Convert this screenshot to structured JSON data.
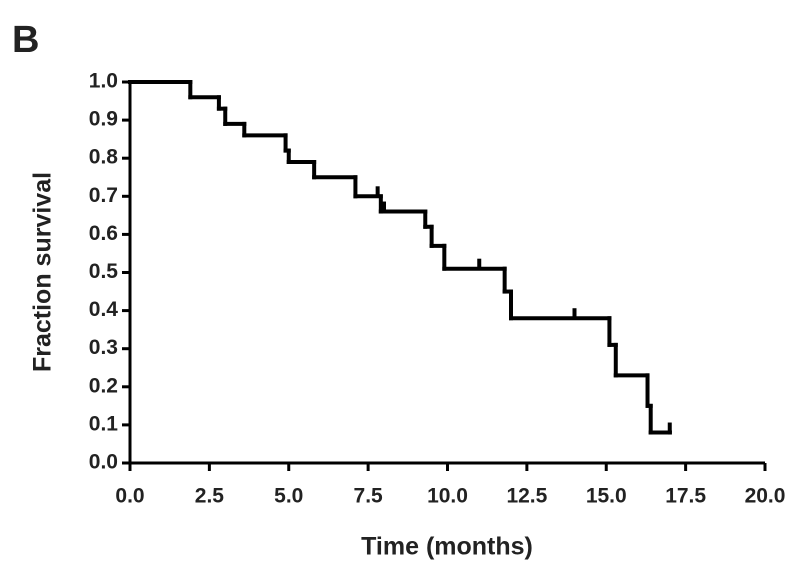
{
  "chart_data": {
    "type": "step",
    "panel_label": "B",
    "x_label": "Time (months)",
    "y_label": "Fraction survival",
    "x": [
      0,
      1.9,
      2.8,
      3.0,
      3.6,
      4.9,
      5.0,
      5.8,
      7.1,
      7.9,
      9.3,
      9.5,
      9.9,
      11.8,
      12.0,
      15.1,
      15.3,
      16.3,
      16.4,
      17.0
    ],
    "values": [
      1.0,
      0.96,
      0.93,
      0.89,
      0.86,
      0.82,
      0.79,
      0.75,
      0.7,
      0.66,
      0.62,
      0.57,
      0.51,
      0.45,
      0.38,
      0.31,
      0.23,
      0.15,
      0.08,
      0.08
    ],
    "censored": {
      "x": [
        7.8,
        8.0,
        11.0,
        14.0,
        17.0
      ],
      "values": [
        0.7,
        0.66,
        0.51,
        0.38,
        0.08
      ]
    },
    "color": "#000000",
    "xlim": [
      0,
      20
    ],
    "xticks": [
      {
        "value": 0,
        "label": "0.0"
      },
      2.5,
      {
        "value": 5,
        "label": "5.0"
      },
      7.5,
      {
        "value": 10,
        "label": "10.0"
      },
      12.5,
      {
        "value": 15,
        "label": "15.0"
      },
      17.5,
      {
        "value": 20,
        "label": "20.0"
      }
    ],
    "ylim": [
      0,
      1
    ],
    "yticks": [
      {
        "value": 0,
        "label": "0.0"
      },
      0.1,
      0.2,
      0.3,
      0.4,
      0.5,
      0.6,
      0.7,
      0.8,
      0.9,
      {
        "value": 1,
        "label": "1.0"
      }
    ]
  }
}
